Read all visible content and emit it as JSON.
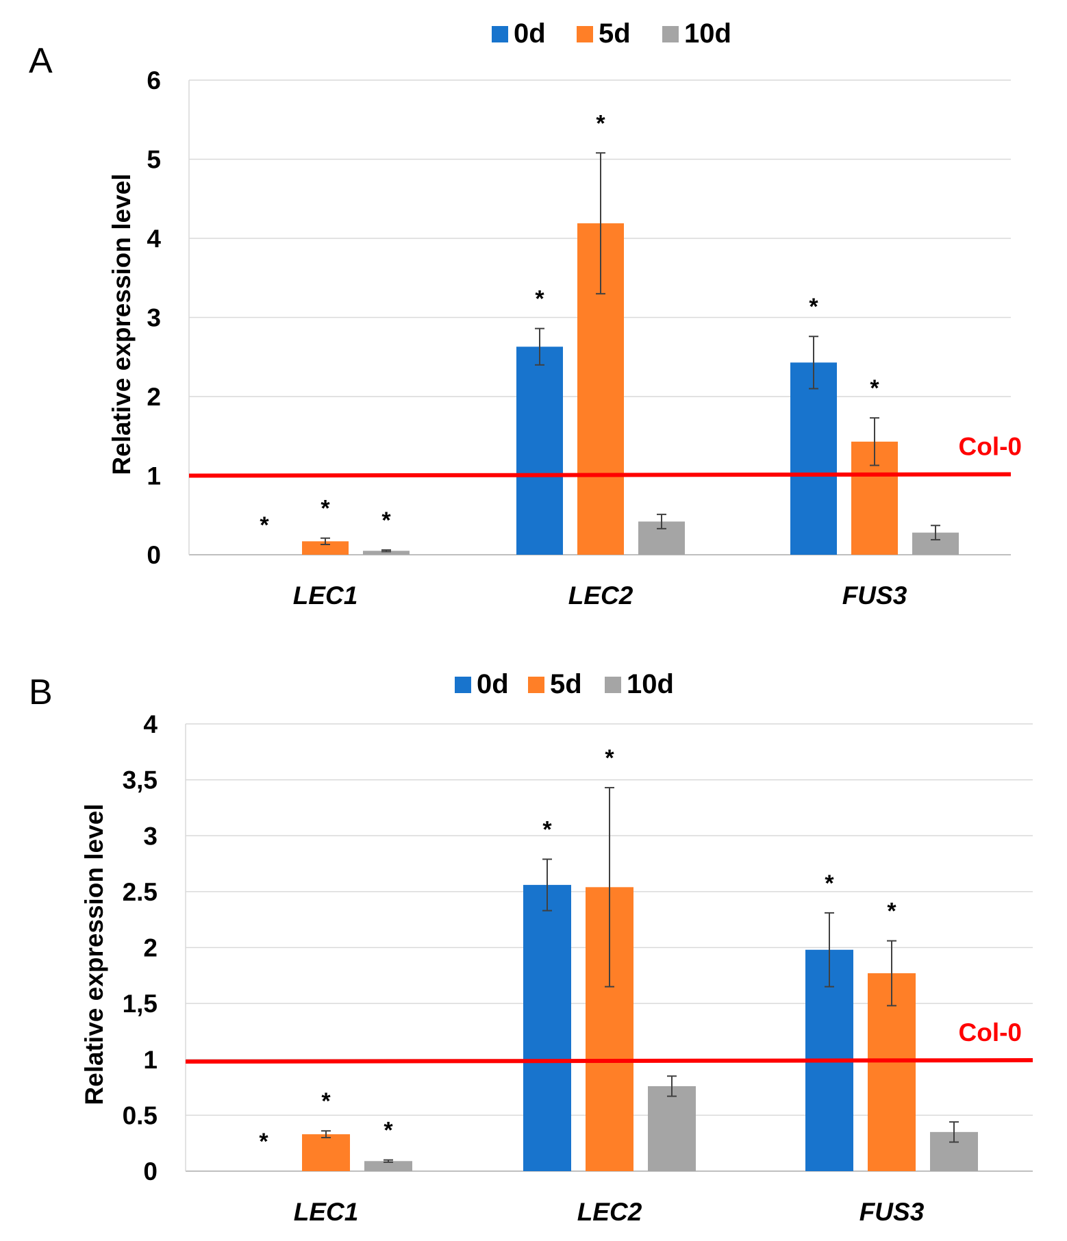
{
  "colors": {
    "series": [
      "#1874CD",
      "#FF7F27",
      "#A5A5A5"
    ],
    "reference": "#FF0000",
    "grid": "#D9D9D9",
    "error": "#404040"
  },
  "chart_data": [
    {
      "type": "bar",
      "panel": "A",
      "categories": [
        "LEC1",
        "LEC2",
        "FUS3"
      ],
      "series": [
        {
          "name": "0d",
          "values": [
            0.0,
            2.63,
            2.43
          ],
          "errors": [
            0.0,
            0.23,
            0.33
          ],
          "stars": [
            true,
            true,
            true
          ]
        },
        {
          "name": "5d",
          "values": [
            0.17,
            4.19,
            1.43
          ],
          "errors": [
            0.04,
            0.89,
            0.3
          ],
          "stars": [
            true,
            true,
            true
          ]
        },
        {
          "name": "10d",
          "values": [
            0.05,
            0.42,
            0.28
          ],
          "errors": [
            0.01,
            0.09,
            0.09
          ],
          "stars": [
            true,
            false,
            false
          ]
        }
      ],
      "ylabel": "Relative expression level",
      "ylim": [
        0,
        6
      ],
      "yticks": [
        0,
        1,
        2,
        3,
        4,
        5,
        6
      ],
      "ytick_labels": [
        "0",
        "1",
        "2",
        "3",
        "4",
        "5",
        "6"
      ],
      "reference_line": {
        "label": "Col-0",
        "value": 1
      },
      "significance_marker": "*",
      "grid": true,
      "legend_position": "top"
    },
    {
      "type": "bar",
      "panel": "B",
      "categories": [
        "LEC1",
        "LEC2",
        "FUS3"
      ],
      "series": [
        {
          "name": "0d",
          "values": [
            0.0,
            2.56,
            1.98
          ],
          "errors": [
            0.0,
            0.23,
            0.33
          ],
          "stars": [
            true,
            true,
            true
          ]
        },
        {
          "name": "5d",
          "values": [
            0.33,
            2.54,
            1.77
          ],
          "errors": [
            0.03,
            0.89,
            0.29
          ],
          "stars": [
            true,
            true,
            true
          ]
        },
        {
          "name": "10d",
          "values": [
            0.09,
            0.76,
            0.35
          ],
          "errors": [
            0.01,
            0.09,
            0.09
          ],
          "stars": [
            true,
            false,
            false
          ]
        }
      ],
      "ylabel": "Relative expression level",
      "ylim": [
        0,
        4
      ],
      "yticks": [
        0,
        0.5,
        1,
        1.5,
        2,
        2.5,
        3,
        3.5,
        4
      ],
      "ytick_labels": [
        "0",
        "0.5",
        "1",
        "1,5",
        "2",
        "2.5",
        "3",
        "3,5",
        "4"
      ],
      "reference_line": {
        "label": "Col-0",
        "value": 0.98
      },
      "significance_marker": "*",
      "grid": true,
      "legend_position": "top"
    }
  ]
}
